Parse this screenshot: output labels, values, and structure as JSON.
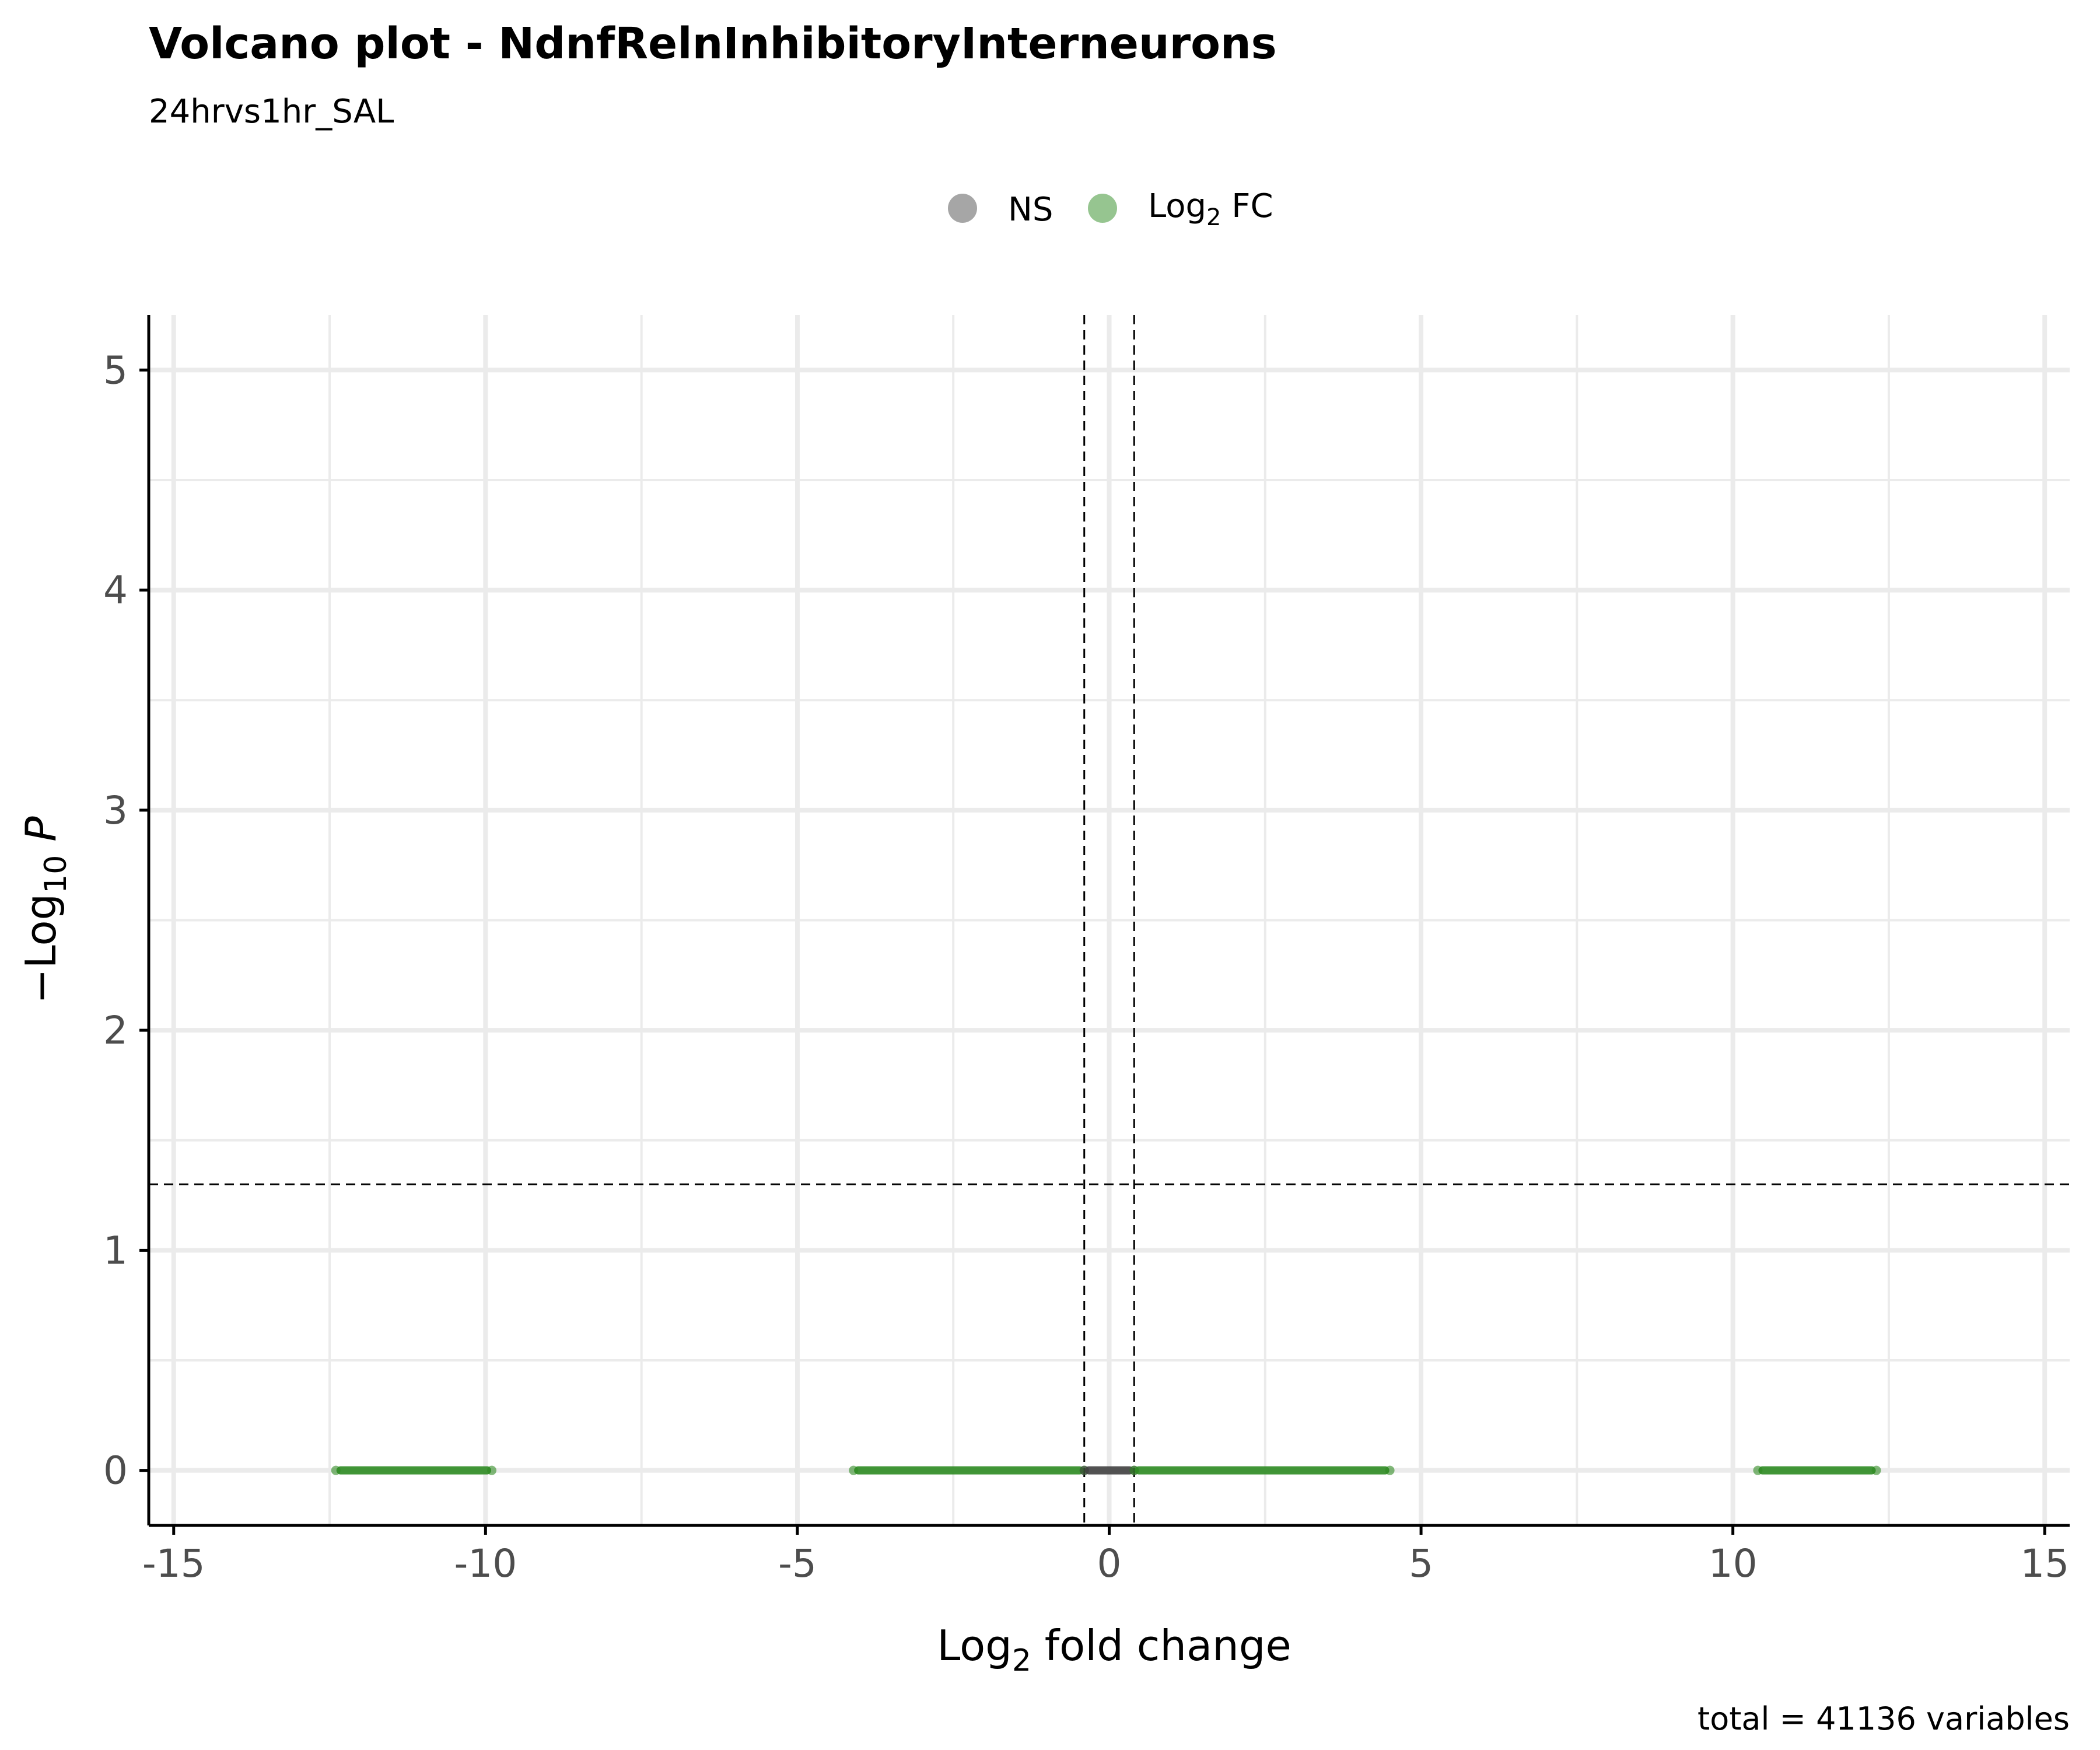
{
  "chart_data": {
    "type": "scatter",
    "title": "Volcano plot - NdnfRelnInhibitoryInterneurons",
    "subtitle": "24hrvs1hr_SAL",
    "caption": "total = 41136 variables",
    "xlabel": {
      "base": "Log",
      "sub": "2",
      "rest": " fold change"
    },
    "ylabel": {
      "prefix": "−Log",
      "sub": "10",
      "rest": " P"
    },
    "xlim": [
      -15.4,
      15.4
    ],
    "ylim": [
      -0.25,
      5.25
    ],
    "x_ticks": [
      -15,
      -10,
      -5,
      0,
      5,
      10,
      15
    ],
    "x_tick_labels": [
      "-15",
      "-10",
      "-5",
      "0",
      "5",
      "10",
      "15"
    ],
    "y_ticks": [
      0,
      1,
      2,
      3,
      4,
      5
    ],
    "y_tick_labels": [
      "0",
      "1",
      "2",
      "3",
      "4",
      "5"
    ],
    "grid": true,
    "legend": {
      "placement": "top",
      "items": [
        {
          "label": "NS",
          "color": "#808080"
        },
        {
          "label_base": "Log",
          "label_sub": "2",
          "label_rest": " FC",
          "color": "#2e8b22"
        }
      ]
    },
    "cutoffs": {
      "log2fc": [
        -0.4,
        0.4
      ],
      "pvalue_line": 1.3
    },
    "colors": {
      "ns": "#404040",
      "fc": "#2e8b22"
    },
    "series": [
      {
        "group": "Log2 FC",
        "x_range": [
          -12.4,
          -9.9
        ],
        "y": 0
      },
      {
        "group": "Log2 FC",
        "x_range": [
          -4.1,
          -0.4
        ],
        "y": 0
      },
      {
        "group": "NS",
        "x_range": [
          -0.4,
          0.4
        ],
        "y": 0
      },
      {
        "group": "Log2 FC",
        "x_range": [
          0.4,
          4.5
        ],
        "y": 0
      },
      {
        "group": "Log2 FC",
        "x_range": [
          10.4,
          12.3
        ],
        "y": 0
      }
    ]
  }
}
